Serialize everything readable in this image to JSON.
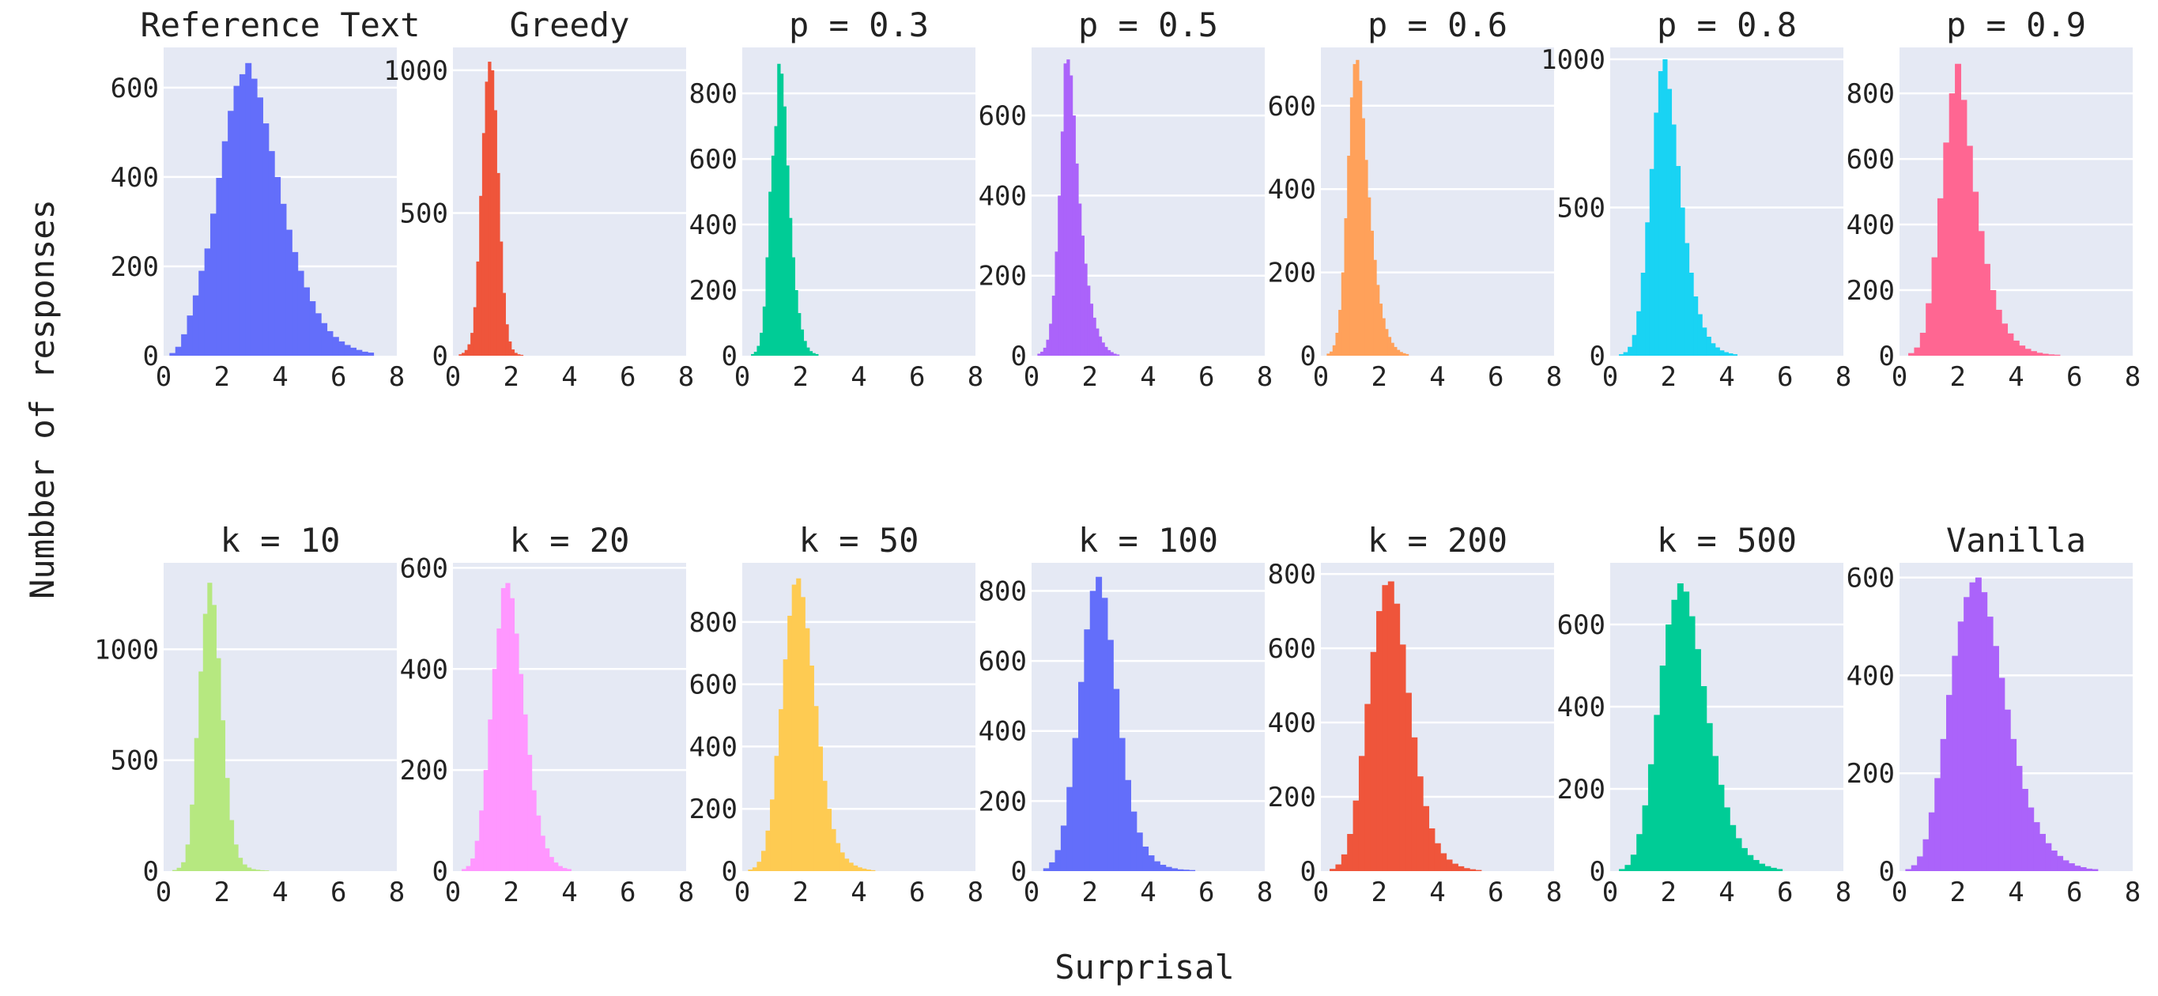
{
  "figure": {
    "xlabel": "Surprisal",
    "ylabel": "Numbber of responses"
  },
  "chart_data": [
    {
      "type": "bar",
      "title": "Reference Text",
      "color": "#636efa",
      "xlim": [
        0,
        8
      ],
      "ylim": [
        0,
        690
      ],
      "x_ticks": [
        0,
        2,
        4,
        6,
        8
      ],
      "y_ticks": [
        0,
        200,
        400,
        600
      ],
      "bin_start": 0.2,
      "bin_width": 0.2,
      "values": [
        6,
        20,
        48,
        90,
        135,
        190,
        240,
        318,
        398,
        480,
        548,
        604,
        630,
        655,
        620,
        578,
        520,
        458,
        400,
        340,
        282,
        232,
        190,
        153,
        122,
        95,
        73,
        55,
        42,
        32,
        24,
        18,
        13,
        9,
        7
      ]
    },
    {
      "type": "bar",
      "title": "Greedy",
      "color": "#ef553b",
      "xlim": [
        0,
        8
      ],
      "ylim": [
        0,
        1080
      ],
      "x_ticks": [
        0,
        2,
        4,
        6,
        8
      ],
      "y_ticks": [
        0,
        500,
        1000
      ],
      "bin_start": 0.2,
      "bin_width": 0.1,
      "values": [
        5,
        10,
        20,
        40,
        80,
        170,
        330,
        560,
        780,
        960,
        1030,
        1000,
        860,
        640,
        400,
        220,
        110,
        50,
        22,
        10,
        5,
        3
      ]
    },
    {
      "type": "bar",
      "title": "p = 0.3",
      "color": "#00cc96",
      "xlim": [
        0,
        8
      ],
      "ylim": [
        0,
        940
      ],
      "x_ticks": [
        0,
        2,
        4,
        6,
        8
      ],
      "y_ticks": [
        0,
        200,
        400,
        600,
        800
      ],
      "bin_start": 0.3,
      "bin_width": 0.1,
      "values": [
        5,
        12,
        30,
        70,
        150,
        300,
        500,
        610,
        700,
        890,
        860,
        760,
        580,
        420,
        300,
        200,
        130,
        80,
        45,
        25,
        14,
        8,
        5
      ]
    },
    {
      "type": "bar",
      "title": "p = 0.5",
      "color": "#ab63fa",
      "xlim": [
        0,
        8
      ],
      "ylim": [
        0,
        770
      ],
      "x_ticks": [
        0,
        2,
        4,
        6,
        8
      ],
      "y_ticks": [
        0,
        200,
        400,
        600
      ],
      "bin_start": 0.2,
      "bin_width": 0.1,
      "values": [
        5,
        10,
        20,
        40,
        80,
        150,
        260,
        400,
        560,
        730,
        740,
        700,
        600,
        480,
        380,
        300,
        230,
        175,
        130,
        95,
        68,
        48,
        33,
        22,
        14,
        9,
        5,
        3
      ]
    },
    {
      "type": "bar",
      "title": "p = 0.6",
      "color": "#ffa15a",
      "xlim": [
        0,
        8
      ],
      "ylim": [
        0,
        740
      ],
      "x_ticks": [
        0,
        2,
        4,
        6,
        8
      ],
      "y_ticks": [
        0,
        200,
        400,
        600
      ],
      "bin_start": 0.2,
      "bin_width": 0.1,
      "values": [
        5,
        10,
        25,
        55,
        110,
        200,
        330,
        480,
        620,
        700,
        710,
        660,
        570,
        470,
        380,
        300,
        230,
        170,
        125,
        90,
        64,
        45,
        31,
        21,
        14,
        9,
        6,
        4
      ]
    },
    {
      "type": "bar",
      "title": "p = 0.8",
      "color": "#19d3f3",
      "xlim": [
        0,
        8
      ],
      "ylim": [
        0,
        1040
      ],
      "x_ticks": [
        0,
        2,
        4,
        6,
        8
      ],
      "y_ticks": [
        0,
        500,
        1000
      ],
      "bin_start": 0.3,
      "bin_width": 0.15,
      "values": [
        5,
        12,
        30,
        70,
        150,
        280,
        450,
        630,
        820,
        960,
        1000,
        900,
        780,
        640,
        500,
        380,
        280,
        200,
        140,
        95,
        64,
        42,
        28,
        18,
        12,
        8,
        5
      ]
    },
    {
      "type": "bar",
      "title": "p = 0.9",
      "color": "#ff6692",
      "xlim": [
        0,
        8
      ],
      "ylim": [
        0,
        940
      ],
      "x_ticks": [
        0,
        2,
        4,
        6,
        8
      ],
      "y_ticks": [
        0,
        200,
        400,
        600,
        800
      ],
      "bin_start": 0.3,
      "bin_width": 0.2,
      "values": [
        8,
        25,
        70,
        160,
        300,
        480,
        650,
        800,
        890,
        780,
        640,
        500,
        380,
        280,
        200,
        140,
        98,
        68,
        46,
        31,
        21,
        14,
        9,
        6,
        4,
        3
      ]
    },
    {
      "type": "bar",
      "title": "k = 10",
      "color": "#b6e880",
      "xlim": [
        0,
        8
      ],
      "ylim": [
        0,
        1390
      ],
      "x_ticks": [
        0,
        2,
        4,
        6,
        8
      ],
      "y_ticks": [
        0,
        500,
        1000
      ],
      "bin_start": 0.3,
      "bin_width": 0.15,
      "values": [
        5,
        15,
        40,
        120,
        300,
        600,
        900,
        1160,
        1300,
        1200,
        960,
        680,
        420,
        230,
        120,
        60,
        30,
        16,
        9,
        6,
        4,
        3
      ]
    },
    {
      "type": "bar",
      "title": "k = 20",
      "color": "#ff97ff",
      "xlim": [
        0,
        8
      ],
      "ylim": [
        0,
        610
      ],
      "x_ticks": [
        0,
        2,
        4,
        6,
        8
      ],
      "y_ticks": [
        0,
        200,
        400,
        600
      ],
      "bin_start": 0.3,
      "bin_width": 0.15,
      "values": [
        4,
        10,
        25,
        60,
        120,
        200,
        300,
        400,
        480,
        560,
        570,
        540,
        470,
        390,
        310,
        230,
        160,
        110,
        70,
        45,
        28,
        17,
        10,
        6,
        4
      ]
    },
    {
      "type": "bar",
      "title": "k = 50",
      "color": "#fecb52",
      "xlim": [
        0,
        8
      ],
      "ylim": [
        0,
        990
      ],
      "x_ticks": [
        0,
        2,
        4,
        6,
        8
      ],
      "y_ticks": [
        0,
        200,
        400,
        600,
        800
      ],
      "bin_start": 0.2,
      "bin_width": 0.15,
      "values": [
        5,
        12,
        30,
        65,
        130,
        230,
        370,
        520,
        680,
        820,
        920,
        940,
        880,
        780,
        660,
        530,
        400,
        290,
        200,
        135,
        90,
        60,
        40,
        27,
        18,
        12,
        8,
        5,
        3
      ]
    },
    {
      "type": "bar",
      "title": "k = 100",
      "color": "#636efa",
      "xlim": [
        0,
        8
      ],
      "ylim": [
        0,
        880
      ],
      "x_ticks": [
        0,
        2,
        4,
        6,
        8
      ],
      "y_ticks": [
        0,
        200,
        400,
        600,
        800
      ],
      "bin_start": 0.4,
      "bin_width": 0.2,
      "values": [
        8,
        25,
        60,
        130,
        240,
        380,
        540,
        690,
        800,
        840,
        780,
        660,
        520,
        380,
        260,
        170,
        110,
        70,
        45,
        28,
        18,
        12,
        8,
        5,
        4,
        3
      ]
    },
    {
      "type": "bar",
      "title": "k = 200",
      "color": "#ef553b",
      "xlim": [
        0,
        8
      ],
      "ylim": [
        0,
        830
      ],
      "x_ticks": [
        0,
        2,
        4,
        6,
        8
      ],
      "y_ticks": [
        0,
        200,
        400,
        600,
        800
      ],
      "bin_start": 0.3,
      "bin_width": 0.2,
      "values": [
        6,
        18,
        45,
        100,
        190,
        310,
        450,
        590,
        700,
        770,
        780,
        720,
        610,
        480,
        360,
        255,
        175,
        115,
        75,
        48,
        31,
        20,
        13,
        8,
        5,
        3
      ]
    },
    {
      "type": "bar",
      "title": "k = 500",
      "color": "#00cc96",
      "xlim": [
        0,
        8
      ],
      "ylim": [
        0,
        750
      ],
      "x_ticks": [
        0,
        2,
        4,
        6,
        8
      ],
      "y_ticks": [
        0,
        200,
        400,
        600
      ],
      "bin_start": 0.3,
      "bin_width": 0.2,
      "values": [
        5,
        15,
        40,
        90,
        160,
        260,
        380,
        500,
        600,
        660,
        700,
        680,
        620,
        540,
        450,
        360,
        280,
        210,
        155,
        112,
        80,
        56,
        39,
        27,
        18,
        12,
        8,
        5
      ]
    },
    {
      "type": "bar",
      "title": "Vanilla",
      "color": "#ab63fa",
      "xlim": [
        0,
        8
      ],
      "ylim": [
        0,
        630
      ],
      "x_ticks": [
        0,
        2,
        4,
        6,
        8
      ],
      "y_ticks": [
        0,
        200,
        400,
        600
      ],
      "bin_start": 0.2,
      "bin_width": 0.2,
      "values": [
        4,
        12,
        30,
        65,
        120,
        190,
        270,
        360,
        440,
        510,
        560,
        590,
        600,
        570,
        520,
        460,
        395,
        330,
        270,
        215,
        168,
        130,
        100,
        76,
        57,
        42,
        31,
        22,
        16,
        11,
        8,
        5,
        4
      ]
    }
  ]
}
